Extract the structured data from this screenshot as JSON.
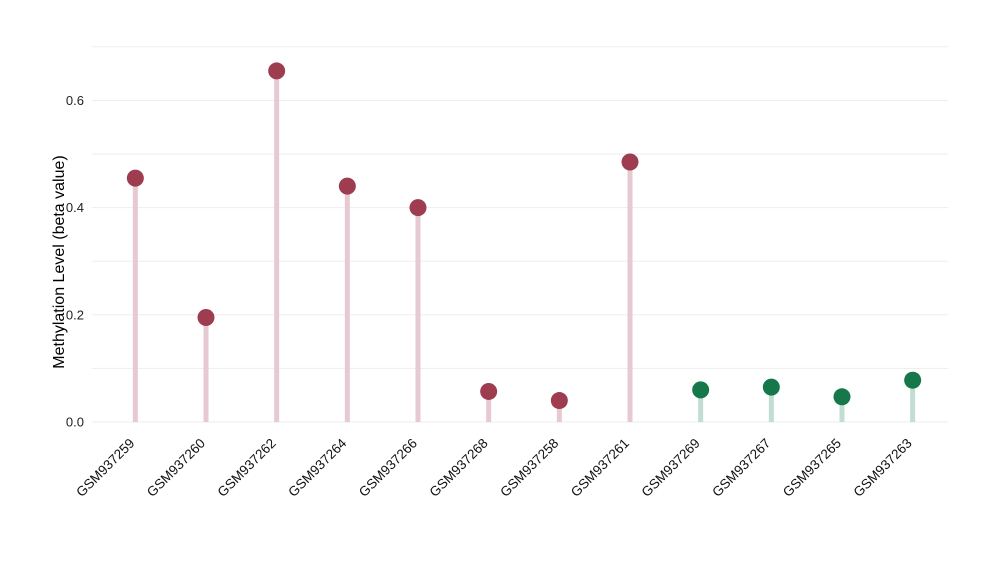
{
  "chart_data": {
    "type": "bar",
    "variant": "lollipop",
    "title": "",
    "xlabel": "",
    "ylabel": "Methylation Level (beta value)",
    "categories": [
      "GSM937259",
      "GSM937260",
      "GSM937262",
      "GSM937264",
      "GSM937266",
      "GSM937268",
      "GSM937258",
      "GSM937261",
      "GSM937269",
      "GSM937267",
      "GSM937265",
      "GSM937263"
    ],
    "values": [
      0.455,
      0.195,
      0.655,
      0.44,
      0.4,
      0.057,
      0.04,
      0.485,
      0.06,
      0.065,
      0.047,
      0.078
    ],
    "groups": [
      "red",
      "red",
      "red",
      "red",
      "red",
      "red",
      "red",
      "red",
      "green",
      "green",
      "green",
      "green"
    ],
    "group_colors": {
      "red": {
        "marker": "#9e3c50",
        "stem": "#e7c9d1"
      },
      "green": {
        "marker": "#16784a",
        "stem": "#c2ddd1"
      }
    },
    "yticks": [
      0.0,
      0.2,
      0.4,
      0.6
    ],
    "gridline_step": 0.1,
    "grid_max": 0.7,
    "ylim": [
      0,
      0.75
    ],
    "grid": true,
    "grid_color": "#ededed",
    "legend_position": "none"
  }
}
